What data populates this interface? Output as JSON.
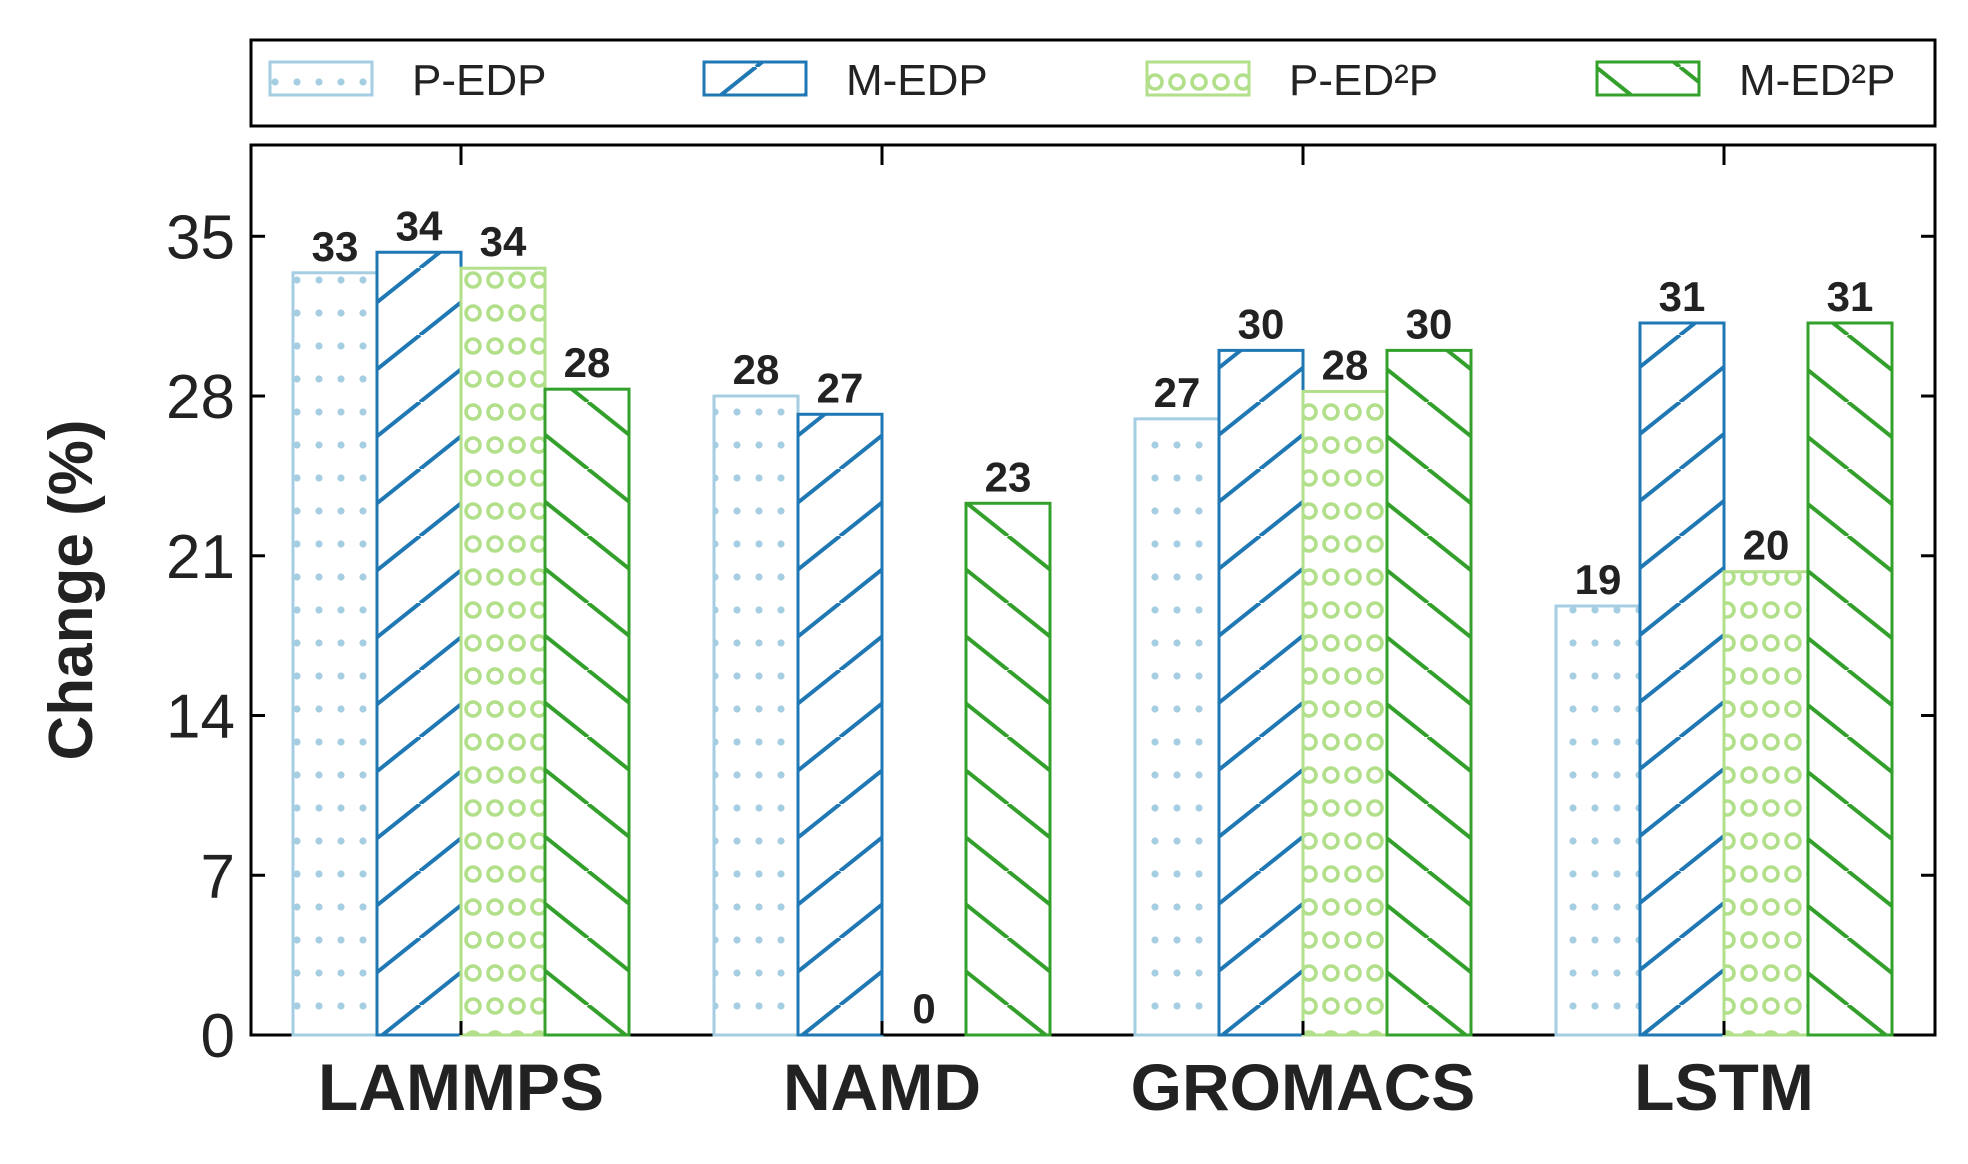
{
  "chart_data": {
    "type": "bar",
    "categories": [
      "LAMMPS",
      "NAMD",
      "GROMACS",
      "LSTM"
    ],
    "series": [
      {
        "name": "P-EDP",
        "values": [
          33.4,
          28.0,
          27.0,
          18.8
        ],
        "labels": [
          "33",
          "28",
          "27",
          "19"
        ],
        "color": "#a6cee3",
        "pattern": "dots"
      },
      {
        "name": "M-EDP",
        "values": [
          34.3,
          27.2,
          30.0,
          31.2
        ],
        "labels": [
          "34",
          "27",
          "30",
          "31"
        ],
        "color": "#1f78b4",
        "pattern": "forward-hatch"
      },
      {
        "name": "P-ED²P",
        "values": [
          33.6,
          0,
          28.2,
          20.3
        ],
        "labels": [
          "34",
          "0",
          "28",
          "20"
        ],
        "color": "#b2df8a",
        "pattern": "circles"
      },
      {
        "name": "M-ED²P",
        "values": [
          28.3,
          23.3,
          30.0,
          31.2
        ],
        "labels": [
          "28",
          "23",
          "30",
          "31"
        ],
        "color": "#33a02c",
        "pattern": "back-hatch"
      }
    ],
    "xlabel": "",
    "ylabel": "Change (%)",
    "ylim": [
      0,
      39
    ],
    "yticks": [
      "0",
      "7",
      "14",
      "21",
      "28",
      "35"
    ],
    "grid": false,
    "legend_position": "top"
  }
}
